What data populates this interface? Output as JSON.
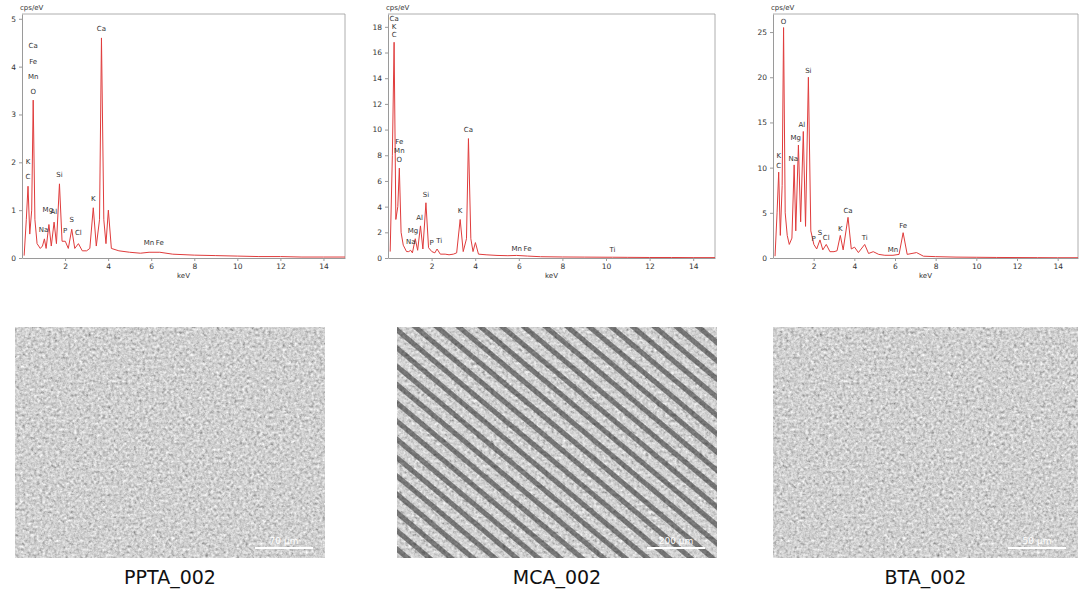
{
  "chart_data": [
    {
      "type": "line",
      "x_label": "keV",
      "y_label": "cps/eV",
      "color": "#e03c3c",
      "grid": false,
      "xlim": [
        0,
        15
      ],
      "ylim": [
        0,
        5.1
      ],
      "xticks": [
        2,
        4,
        6,
        8,
        10,
        12,
        14
      ],
      "yticks": [
        0,
        1,
        2,
        3,
        4,
        5
      ],
      "x": [
        0.1,
        0.2,
        0.28,
        0.36,
        0.45,
        0.52,
        0.6,
        0.7,
        0.85,
        0.95,
        1.04,
        1.12,
        1.25,
        1.36,
        1.49,
        1.6,
        1.74,
        1.86,
        2.01,
        2.15,
        2.31,
        2.45,
        2.62,
        2.8,
        3.0,
        3.15,
        3.31,
        3.45,
        3.6,
        3.69,
        3.8,
        3.9,
        4.01,
        4.15,
        4.5,
        5.0,
        5.5,
        5.9,
        6.4,
        7,
        8,
        9,
        10,
        11,
        12,
        13,
        14,
        15
      ],
      "values": [
        0.05,
        0.8,
        1.5,
        0.5,
        1.0,
        3.3,
        0.8,
        0.3,
        0.2,
        0.25,
        0.4,
        0.2,
        0.7,
        0.25,
        0.75,
        0.3,
        1.55,
        0.35,
        0.35,
        0.2,
        0.6,
        0.2,
        0.3,
        0.15,
        0.15,
        0.2,
        1.05,
        0.25,
        0.8,
        4.6,
        0.8,
        0.3,
        1.0,
        0.2,
        0.15,
        0.12,
        0.1,
        0.12,
        0.12,
        0.08,
        0.06,
        0.05,
        0.04,
        0.03,
        0.03,
        0.02,
        0.02,
        0.02
      ],
      "annotations": [
        {
          "text": "Ca",
          "x": 0.52,
          "y": 4.36
        },
        {
          "text": "Fe",
          "x": 0.52,
          "y": 4.04
        },
        {
          "text": "Mn",
          "x": 0.52,
          "y": 3.72
        },
        {
          "text": "O",
          "x": 0.52,
          "y": 3.4
        },
        {
          "text": "K",
          "x": 0.28,
          "y": 1.95
        },
        {
          "text": "C",
          "x": 0.28,
          "y": 1.62
        },
        {
          "text": "Na",
          "x": 1.0,
          "y": 0.52
        },
        {
          "text": "Mg",
          "x": 1.2,
          "y": 0.95
        },
        {
          "text": "Al",
          "x": 1.48,
          "y": 0.9
        },
        {
          "text": "Si",
          "x": 1.74,
          "y": 1.68
        },
        {
          "text": "P",
          "x": 2.0,
          "y": 0.5
        },
        {
          "text": "S",
          "x": 2.31,
          "y": 0.74
        },
        {
          "text": "Cl",
          "x": 2.62,
          "y": 0.45
        },
        {
          "text": "K",
          "x": 3.31,
          "y": 1.18
        },
        {
          "text": "Ca",
          "x": 3.69,
          "y": 4.72
        },
        {
          "text": "Mn",
          "x": 5.9,
          "y": 0.25
        },
        {
          "text": "Fe",
          "x": 6.4,
          "y": 0.25
        }
      ]
    },
    {
      "type": "line",
      "x_label": "keV",
      "y_label": "cps/eV",
      "color": "#e03c3c",
      "grid": false,
      "xlim": [
        0,
        15
      ],
      "ylim": [
        0,
        19
      ],
      "xticks": [
        2,
        4,
        6,
        8,
        10,
        12,
        14
      ],
      "yticks": [
        0,
        2,
        4,
        6,
        8,
        10,
        12,
        14,
        16,
        18
      ],
      "x": [
        0.1,
        0.2,
        0.28,
        0.36,
        0.45,
        0.52,
        0.6,
        0.7,
        0.85,
        0.95,
        1.04,
        1.12,
        1.25,
        1.36,
        1.49,
        1.6,
        1.74,
        1.86,
        2.01,
        2.15,
        2.25,
        2.4,
        2.62,
        2.8,
        3.0,
        3.15,
        3.31,
        3.45,
        3.6,
        3.69,
        3.8,
        3.9,
        4.01,
        4.15,
        4.5,
        5.0,
        5.5,
        5.9,
        6.4,
        7,
        8,
        9,
        10,
        10.3,
        11,
        12,
        13,
        14,
        15
      ],
      "values": [
        0.5,
        8,
        16.8,
        3,
        4,
        7,
        2,
        1,
        0.5,
        0.5,
        0.6,
        0.4,
        1.5,
        0.6,
        2.5,
        0.7,
        4.3,
        0.8,
        0.5,
        0.4,
        0.7,
        0.3,
        0.3,
        0.25,
        0.3,
        0.4,
        3.0,
        0.5,
        1.5,
        9.3,
        1.5,
        0.5,
        1.2,
        0.3,
        0.25,
        0.2,
        0.18,
        0.2,
        0.15,
        0.1,
        0.08,
        0.07,
        0.06,
        0.06,
        0.05,
        0.04,
        0.04,
        0.03,
        0.03
      ],
      "annotations": [
        {
          "text": "Ca",
          "x": 0.28,
          "y": 18.4
        },
        {
          "text": "K",
          "x": 0.28,
          "y": 17.75
        },
        {
          "text": "C",
          "x": 0.28,
          "y": 17.1
        },
        {
          "text": "Fe",
          "x": 0.52,
          "y": 8.8
        },
        {
          "text": "Mn",
          "x": 0.52,
          "y": 8.1
        },
        {
          "text": "O",
          "x": 0.52,
          "y": 7.4
        },
        {
          "text": "Na",
          "x": 1.04,
          "y": 1.0
        },
        {
          "text": "Mg",
          "x": 1.15,
          "y": 1.9
        },
        {
          "text": "Al",
          "x": 1.45,
          "y": 2.9
        },
        {
          "text": "Si",
          "x": 1.74,
          "y": 4.7
        },
        {
          "text": "P",
          "x": 2.0,
          "y": 0.9
        },
        {
          "text": "Ti",
          "x": 2.35,
          "y": 1.1
        },
        {
          "text": "K",
          "x": 3.31,
          "y": 3.4
        },
        {
          "text": "Ca",
          "x": 3.69,
          "y": 9.7
        },
        {
          "text": "Mn",
          "x": 5.9,
          "y": 0.5
        },
        {
          "text": "Fe",
          "x": 6.4,
          "y": 0.5
        },
        {
          "text": "Ti",
          "x": 10.3,
          "y": 0.4
        }
      ]
    },
    {
      "type": "line",
      "x_label": "keV",
      "y_label": "cps/eV",
      "color": "#e03c3c",
      "grid": false,
      "xlim": [
        0,
        15
      ],
      "ylim": [
        0,
        27
      ],
      "xticks": [
        2,
        4,
        6,
        8,
        10,
        12,
        14
      ],
      "yticks": [
        0,
        5,
        10,
        15,
        20,
        25
      ],
      "x": [
        0.1,
        0.2,
        0.28,
        0.36,
        0.45,
        0.52,
        0.6,
        0.7,
        0.8,
        0.93,
        1.04,
        1.12,
        1.25,
        1.36,
        1.49,
        1.6,
        1.74,
        1.86,
        2.01,
        2.15,
        2.31,
        2.45,
        2.62,
        2.8,
        3.0,
        3.15,
        3.31,
        3.45,
        3.69,
        3.85,
        4.01,
        4.2,
        4.51,
        4.7,
        4.93,
        5.2,
        5.5,
        5.9,
        6.2,
        6.4,
        6.6,
        7.06,
        7.4,
        8,
        9,
        10,
        11,
        12,
        13,
        14,
        15
      ],
      "values": [
        0.2,
        5,
        9.5,
        2.5,
        8,
        25.5,
        5,
        2.5,
        1.5,
        2.2,
        10.3,
        3,
        12.5,
        4,
        14,
        3.5,
        20,
        3,
        1.5,
        1,
        2,
        0.9,
        1.5,
        0.7,
        0.7,
        0.8,
        2.5,
        0.9,
        4.5,
        1,
        1.2,
        0.6,
        1.5,
        0.5,
        0.7,
        0.4,
        0.3,
        0.3,
        0.4,
        2.8,
        0.4,
        0.6,
        0.2,
        0.15,
        0.1,
        0.08,
        0.06,
        0.05,
        0.04,
        0.03,
        0.03
      ],
      "annotations": [
        {
          "text": "K",
          "x": 0.28,
          "y": 10.9
        },
        {
          "text": "C",
          "x": 0.28,
          "y": 9.8
        },
        {
          "text": "O",
          "x": 0.52,
          "y": 25.8
        },
        {
          "text": "Na",
          "x": 1.0,
          "y": 10.6
        },
        {
          "text": "Mg",
          "x": 1.12,
          "y": 12.9
        },
        {
          "text": "Al",
          "x": 1.42,
          "y": 14.4
        },
        {
          "text": "Si",
          "x": 1.74,
          "y": 20.4
        },
        {
          "text": "P",
          "x": 2.0,
          "y": 1.8
        },
        {
          "text": "S",
          "x": 2.31,
          "y": 2.4
        },
        {
          "text": "Cl",
          "x": 2.62,
          "y": 1.9
        },
        {
          "text": "K",
          "x": 3.31,
          "y": 2.9
        },
        {
          "text": "Ca",
          "x": 3.69,
          "y": 4.9
        },
        {
          "text": "Ti",
          "x": 4.51,
          "y": 1.9
        },
        {
          "text": "Mn",
          "x": 5.9,
          "y": 0.6
        },
        {
          "text": "Fe",
          "x": 6.4,
          "y": 3.2
        }
      ]
    }
  ],
  "images": [
    {
      "caption": "PPTA_002",
      "scale_bar": "70 μm"
    },
    {
      "caption": "MCA_002",
      "scale_bar": "200 μm"
    },
    {
      "caption": "BTA_002",
      "scale_bar": "50 μm"
    }
  ]
}
